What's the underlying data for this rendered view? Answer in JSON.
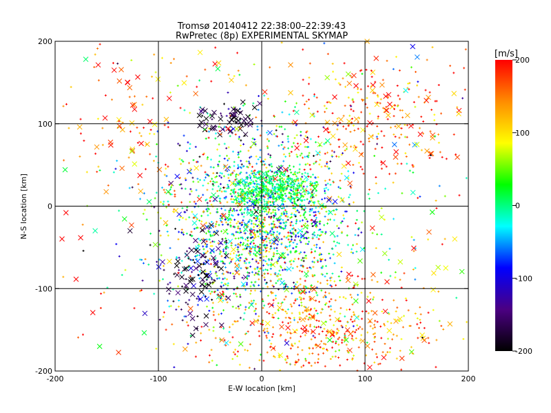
{
  "chart_data": {
    "type": "scatter",
    "title": "Tromsø 20140412 22:38:00–22:39:43",
    "subtitle": "RwPretec (8p) EXPERIMENTAL SKYMAP",
    "xlabel": "E-W location [km]",
    "ylabel": "N-S location [km]",
    "xlim": [
      -200,
      200
    ],
    "ylim": [
      -200,
      200
    ],
    "x_ticks": [
      "-200",
      "-100",
      "0",
      "100",
      "200"
    ],
    "y_ticks": [
      "-200",
      "-100",
      "0",
      "100",
      "200"
    ],
    "grid": true,
    "colorbar": {
      "label": "[m/s]",
      "range": [
        -200,
        200
      ],
      "ticks": [
        "200",
        "100",
        "0",
        "-100",
        "-200"
      ],
      "colors": [
        "#000000",
        "#4b0082",
        "#0000ff",
        "#00ffff",
        "#00ff00",
        "#ffff00",
        "#ff8c00",
        "#ff0000"
      ]
    },
    "markers": {
      "small": "plus",
      "large": "cross"
    },
    "clusters": [
      {
        "x": 0,
        "y": -20,
        "sx": 45,
        "sy": 55,
        "n": 1800,
        "v": 0,
        "sv": 90,
        "cross_frac": 0.03
      },
      {
        "x": 10,
        "y": 20,
        "sx": 22,
        "sy": 12,
        "n": 450,
        "v": 10,
        "sv": 25,
        "cross_frac": 0.05
      },
      {
        "x": -30,
        "y": 105,
        "sx": 14,
        "sy": 9,
        "n": 70,
        "v": -180,
        "sv": 30,
        "cross_frac": 0.55
      },
      {
        "x": -60,
        "y": -85,
        "sx": 16,
        "sy": 30,
        "n": 120,
        "v": -170,
        "sv": 40,
        "cross_frac": 0.45
      },
      {
        "x": 60,
        "y": -150,
        "sx": 55,
        "sy": 35,
        "n": 500,
        "v": 150,
        "sv": 50,
        "cross_frac": 0.08
      },
      {
        "x": 110,
        "y": 110,
        "sx": 45,
        "sy": 40,
        "n": 280,
        "v": 160,
        "sv": 50,
        "cross_frac": 0.18
      },
      {
        "x": -130,
        "y": 110,
        "sx": 40,
        "sy": 50,
        "n": 90,
        "v": 160,
        "sv": 50,
        "cross_frac": 0.35
      },
      {
        "x": 0,
        "y": 0,
        "sx": 130,
        "sy": 130,
        "n": 450,
        "v": 90,
        "sv": 120,
        "cross_frac": 0.25
      }
    ]
  }
}
